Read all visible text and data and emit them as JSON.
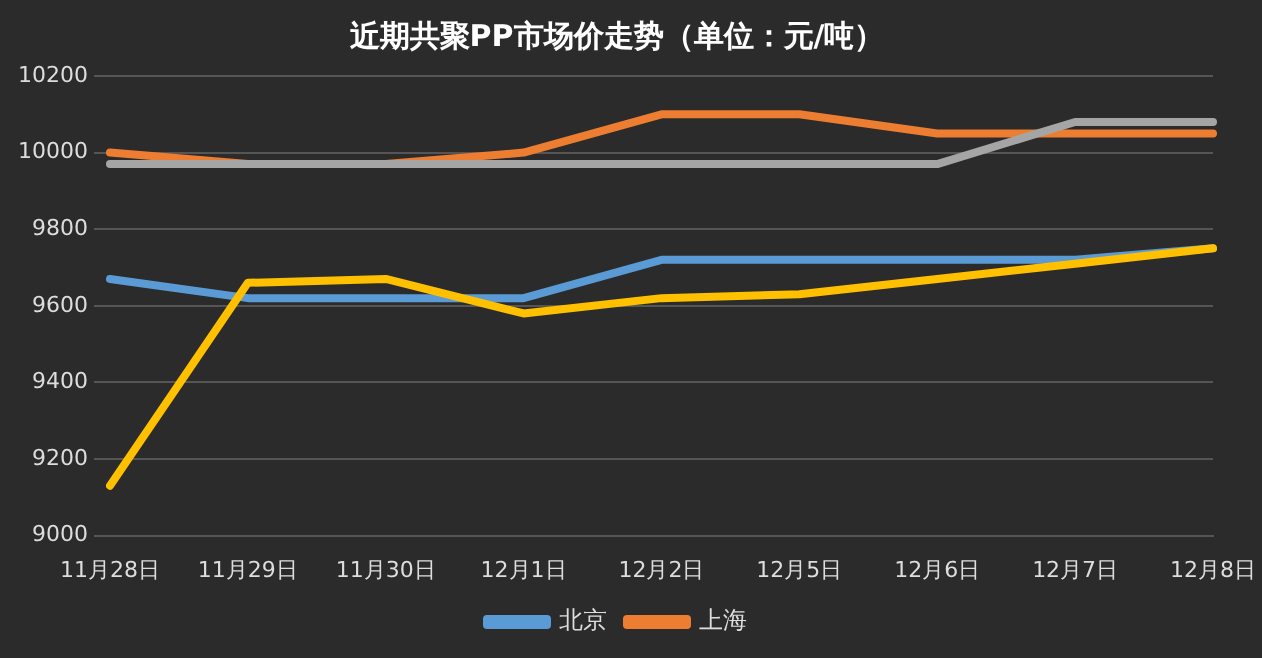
{
  "chart_data": {
    "type": "line",
    "title": "近期共聚PP市场价走势（单位：元/吨）",
    "categories": [
      "11月28日",
      "11月29日",
      "11月30日",
      "12月1日",
      "12月2日",
      "12月5日",
      "12月6日",
      "12月7日",
      "12月8日"
    ],
    "series": [
      {
        "name": "北京",
        "color": "#5b9bd5",
        "values": [
          9670,
          9620,
          9620,
          9620,
          9720,
          9720,
          9720,
          9720,
          9750
        ]
      },
      {
        "name": "上海",
        "color": "#ed7d31",
        "values": [
          10000,
          9970,
          9970,
          10000,
          10100,
          10100,
          10050,
          10050,
          10050
        ]
      },
      {
        "color": "#a5a5a5",
        "values": [
          9970,
          9970,
          9970,
          9970,
          9970,
          9970,
          9970,
          10080,
          10080
        ]
      },
      {
        "color": "#ffc000",
        "values": [
          9130,
          9660,
          9670,
          9580,
          9620,
          9630,
          9670,
          9710,
          9750
        ]
      }
    ],
    "ylim": [
      9000,
      10200
    ],
    "yticks": [
      9000,
      9200,
      9400,
      9600,
      9800,
      10000,
      10200
    ],
    "grid": "y",
    "legend": "bottom",
    "marker": "none",
    "line_style": "solid"
  }
}
